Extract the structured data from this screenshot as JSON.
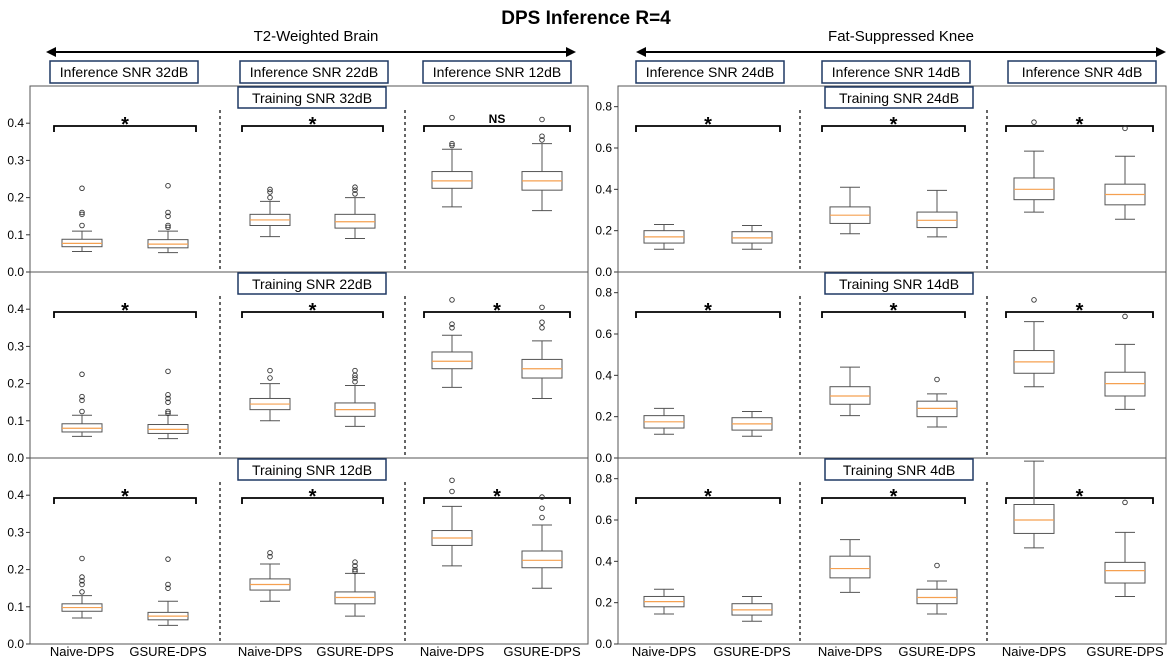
{
  "title": "DPS Inference R=4",
  "colors": {
    "median": "#f5a050",
    "box": "#555555",
    "sig": "#000000",
    "label_box": "#1f3864"
  },
  "groups": [
    {
      "name": "T2-Weighted Brain",
      "inference_labels": [
        "Inference SNR 32dB",
        "Inference SNR 22dB",
        "Inference SNR 12dB"
      ],
      "training_labels": [
        "Training SNR 32dB",
        "Training SNR 22dB",
        "Training SNR 12dB"
      ],
      "yticks": [
        "0.0",
        "0.1",
        "0.2",
        "0.3",
        "0.4"
      ]
    },
    {
      "name": "Fat-Suppressed Knee",
      "inference_labels": [
        "Inference SNR 24dB",
        "Inference SNR 14dB",
        "Inference SNR 4dB"
      ],
      "training_labels": [
        "Training SNR 24dB",
        "Training SNR 14dB",
        "Training SNR 4dB"
      ],
      "yticks": [
        "0.0",
        "0.2",
        "0.4",
        "0.6",
        "0.8"
      ]
    }
  ],
  "categories": [
    "Naive-DPS",
    "GSURE-DPS"
  ],
  "chart_data": {
    "type": "box",
    "title": "DPS Inference R=4",
    "categories": [
      "Naive-DPS",
      "GSURE-DPS"
    ],
    "panels": [
      {
        "dataset": "T2-Weighted Brain",
        "training": "Training SNR 32dB",
        "ylim": [
          0,
          0.5
        ],
        "cells": [
          {
            "inference": "Inference SNR 32dB",
            "sig": "*",
            "boxes": [
              {
                "whislo": 0.055,
                "q1": 0.068,
                "med": 0.077,
                "q3": 0.088,
                "whishi": 0.11,
                "fliers": [
                  0.125,
                  0.155,
                  0.16,
                  0.225
                ]
              },
              {
                "whislo": 0.052,
                "q1": 0.065,
                "med": 0.075,
                "q3": 0.087,
                "whishi": 0.11,
                "fliers": [
                  0.12,
                  0.125,
                  0.15,
                  0.16,
                  0.232
                ]
              }
            ]
          },
          {
            "inference": "Inference SNR 22dB",
            "sig": "*",
            "boxes": [
              {
                "whislo": 0.095,
                "q1": 0.125,
                "med": 0.14,
                "q3": 0.155,
                "whishi": 0.19,
                "fliers": [
                  0.2,
                  0.215,
                  0.222
                ]
              },
              {
                "whislo": 0.09,
                "q1": 0.118,
                "med": 0.135,
                "q3": 0.155,
                "whishi": 0.2,
                "fliers": [
                  0.21,
                  0.22,
                  0.228
                ]
              }
            ]
          },
          {
            "inference": "Inference SNR 12dB",
            "sig": "NS",
            "boxes": [
              {
                "whislo": 0.175,
                "q1": 0.225,
                "med": 0.245,
                "q3": 0.27,
                "whishi": 0.33,
                "fliers": [
                  0.34,
                  0.345,
                  0.415
                ]
              },
              {
                "whislo": 0.165,
                "q1": 0.22,
                "med": 0.245,
                "q3": 0.27,
                "whishi": 0.345,
                "fliers": [
                  0.355,
                  0.365,
                  0.41
                ]
              }
            ]
          }
        ]
      },
      {
        "dataset": "Fat-Suppressed Knee",
        "training": "Training SNR 24dB",
        "ylim": [
          0,
          0.9
        ],
        "cells": [
          {
            "inference": "Inference SNR 24dB",
            "sig": "*",
            "boxes": [
              {
                "whislo": 0.11,
                "q1": 0.14,
                "med": 0.17,
                "q3": 0.2,
                "whishi": 0.23,
                "fliers": []
              },
              {
                "whislo": 0.11,
                "q1": 0.14,
                "med": 0.165,
                "q3": 0.195,
                "whishi": 0.225,
                "fliers": []
              }
            ]
          },
          {
            "inference": "Inference SNR 14dB",
            "sig": "*",
            "boxes": [
              {
                "whislo": 0.185,
                "q1": 0.235,
                "med": 0.275,
                "q3": 0.315,
                "whishi": 0.41,
                "fliers": []
              },
              {
                "whislo": 0.17,
                "q1": 0.215,
                "med": 0.25,
                "q3": 0.29,
                "whishi": 0.395,
                "fliers": []
              }
            ]
          },
          {
            "inference": "Inference SNR 4dB",
            "sig": "*",
            "boxes": [
              {
                "whislo": 0.29,
                "q1": 0.35,
                "med": 0.4,
                "q3": 0.455,
                "whishi": 0.585,
                "fliers": [
                  0.725
                ]
              },
              {
                "whislo": 0.255,
                "q1": 0.325,
                "med": 0.375,
                "q3": 0.425,
                "whishi": 0.56,
                "fliers": [
                  0.695
                ]
              }
            ]
          }
        ]
      },
      {
        "dataset": "T2-Weighted Brain",
        "training": "Training SNR 22dB",
        "ylim": [
          0,
          0.5
        ],
        "cells": [
          {
            "inference": "Inference SNR 32dB",
            "sig": "*",
            "boxes": [
              {
                "whislo": 0.058,
                "q1": 0.07,
                "med": 0.08,
                "q3": 0.092,
                "whishi": 0.115,
                "fliers": [
                  0.125,
                  0.155,
                  0.165,
                  0.225
                ]
              },
              {
                "whislo": 0.052,
                "q1": 0.066,
                "med": 0.077,
                "q3": 0.09,
                "whishi": 0.115,
                "fliers": [
                  0.12,
                  0.125,
                  0.15,
                  0.16,
                  0.17,
                  0.233
                ]
              }
            ]
          },
          {
            "inference": "Inference SNR 22dB",
            "sig": "*",
            "boxes": [
              {
                "whislo": 0.1,
                "q1": 0.13,
                "med": 0.145,
                "q3": 0.16,
                "whishi": 0.2,
                "fliers": [
                  0.215,
                  0.235
                ]
              },
              {
                "whislo": 0.085,
                "q1": 0.112,
                "med": 0.13,
                "q3": 0.148,
                "whishi": 0.195,
                "fliers": [
                  0.205,
                  0.215,
                  0.222,
                  0.235
                ]
              }
            ]
          },
          {
            "inference": "Inference SNR 12dB",
            "sig": "*",
            "boxes": [
              {
                "whislo": 0.19,
                "q1": 0.24,
                "med": 0.26,
                "q3": 0.285,
                "whishi": 0.33,
                "fliers": [
                  0.35,
                  0.36,
                  0.425
                ]
              },
              {
                "whislo": 0.16,
                "q1": 0.215,
                "med": 0.24,
                "q3": 0.265,
                "whishi": 0.315,
                "fliers": [
                  0.35,
                  0.365,
                  0.405
                ]
              }
            ]
          }
        ]
      },
      {
        "dataset": "Fat-Suppressed Knee",
        "training": "Training SNR 14dB",
        "ylim": [
          0,
          0.9
        ],
        "cells": [
          {
            "inference": "Inference SNR 24dB",
            "sig": "*",
            "boxes": [
              {
                "whislo": 0.115,
                "q1": 0.145,
                "med": 0.175,
                "q3": 0.205,
                "whishi": 0.24,
                "fliers": []
              },
              {
                "whislo": 0.105,
                "q1": 0.135,
                "med": 0.165,
                "q3": 0.195,
                "whishi": 0.225,
                "fliers": []
              }
            ]
          },
          {
            "inference": "Inference SNR 14dB",
            "sig": "*",
            "boxes": [
              {
                "whislo": 0.205,
                "q1": 0.26,
                "med": 0.3,
                "q3": 0.345,
                "whishi": 0.44,
                "fliers": []
              },
              {
                "whislo": 0.15,
                "q1": 0.2,
                "med": 0.24,
                "q3": 0.275,
                "whishi": 0.31,
                "fliers": [
                  0.38
                ]
              }
            ]
          },
          {
            "inference": "Inference SNR 4dB",
            "sig": "*",
            "boxes": [
              {
                "whislo": 0.345,
                "q1": 0.41,
                "med": 0.465,
                "q3": 0.52,
                "whishi": 0.66,
                "fliers": [
                  0.765
                ]
              },
              {
                "whislo": 0.235,
                "q1": 0.3,
                "med": 0.36,
                "q3": 0.415,
                "whishi": 0.55,
                "fliers": [
                  0.685
                ]
              }
            ]
          }
        ]
      },
      {
        "dataset": "T2-Weighted Brain",
        "training": "Training SNR 12dB",
        "ylim": [
          0,
          0.5
        ],
        "cells": [
          {
            "inference": "Inference SNR 32dB",
            "sig": "*",
            "boxes": [
              {
                "whislo": 0.07,
                "q1": 0.088,
                "med": 0.098,
                "q3": 0.108,
                "whishi": 0.13,
                "fliers": [
                  0.14,
                  0.16,
                  0.17,
                  0.18,
                  0.23
                ]
              },
              {
                "whislo": 0.05,
                "q1": 0.065,
                "med": 0.075,
                "q3": 0.085,
                "whishi": 0.115,
                "fliers": [
                  0.15,
                  0.16,
                  0.228
                ]
              }
            ]
          },
          {
            "inference": "Inference SNR 22dB",
            "sig": "*",
            "boxes": [
              {
                "whislo": 0.115,
                "q1": 0.145,
                "med": 0.16,
                "q3": 0.175,
                "whishi": 0.215,
                "fliers": [
                  0.235,
                  0.245
                ]
              },
              {
                "whislo": 0.075,
                "q1": 0.108,
                "med": 0.125,
                "q3": 0.14,
                "whishi": 0.19,
                "fliers": [
                  0.195,
                  0.2,
                  0.21,
                  0.22
                ]
              }
            ]
          },
          {
            "inference": "Inference SNR 12dB",
            "sig": "*",
            "boxes": [
              {
                "whislo": 0.21,
                "q1": 0.265,
                "med": 0.285,
                "q3": 0.305,
                "whishi": 0.37,
                "fliers": [
                  0.41,
                  0.44
                ]
              },
              {
                "whislo": 0.15,
                "q1": 0.205,
                "med": 0.225,
                "q3": 0.25,
                "whishi": 0.32,
                "fliers": [
                  0.34,
                  0.365,
                  0.395
                ]
              }
            ]
          }
        ]
      },
      {
        "dataset": "Fat-Suppressed Knee",
        "training": "Training SNR 4dB",
        "ylim": [
          0,
          0.9
        ],
        "cells": [
          {
            "inference": "Inference SNR 24dB",
            "sig": "*",
            "boxes": [
              {
                "whislo": 0.145,
                "q1": 0.18,
                "med": 0.205,
                "q3": 0.23,
                "whishi": 0.265,
                "fliers": []
              },
              {
                "whislo": 0.11,
                "q1": 0.14,
                "med": 0.165,
                "q3": 0.195,
                "whishi": 0.23,
                "fliers": []
              }
            ]
          },
          {
            "inference": "Inference SNR 14dB",
            "sig": "*",
            "boxes": [
              {
                "whislo": 0.25,
                "q1": 0.32,
                "med": 0.365,
                "q3": 0.425,
                "whishi": 0.505,
                "fliers": []
              },
              {
                "whislo": 0.145,
                "q1": 0.195,
                "med": 0.225,
                "q3": 0.265,
                "whishi": 0.305,
                "fliers": [
                  0.38
                ]
              }
            ]
          },
          {
            "inference": "Inference SNR 4dB",
            "sig": "*",
            "boxes": [
              {
                "whislo": 0.465,
                "q1": 0.535,
                "med": 0.6,
                "q3": 0.675,
                "whishi": 0.885,
                "fliers": []
              },
              {
                "whislo": 0.23,
                "q1": 0.295,
                "med": 0.355,
                "q3": 0.395,
                "whishi": 0.54,
                "fliers": [
                  0.685
                ]
              }
            ]
          }
        ]
      }
    ]
  }
}
